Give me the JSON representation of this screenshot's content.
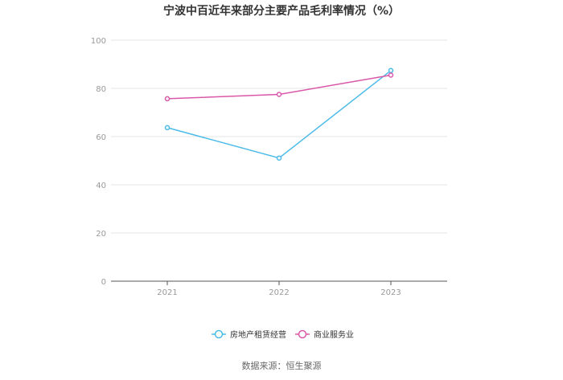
{
  "chart_data": {
    "type": "line",
    "title": "宁波中百近年来部分主要产品毛利率情况（%）",
    "categories": [
      "2021",
      "2022",
      "2023"
    ],
    "ylim": [
      0,
      100
    ],
    "yticks": [
      0,
      20,
      40,
      60,
      80,
      100
    ],
    "series": [
      {
        "name": "房地产租赁经营",
        "values": [
          63.7,
          51.1,
          87.4
        ],
        "color": "#4dbbe8"
      },
      {
        "name": "商业服务业",
        "values": [
          75.7,
          77.5,
          85.5
        ],
        "color": "#d958a8"
      }
    ],
    "grid": true,
    "legend_position": "bottom"
  },
  "source": "数据来源：恒生聚源"
}
